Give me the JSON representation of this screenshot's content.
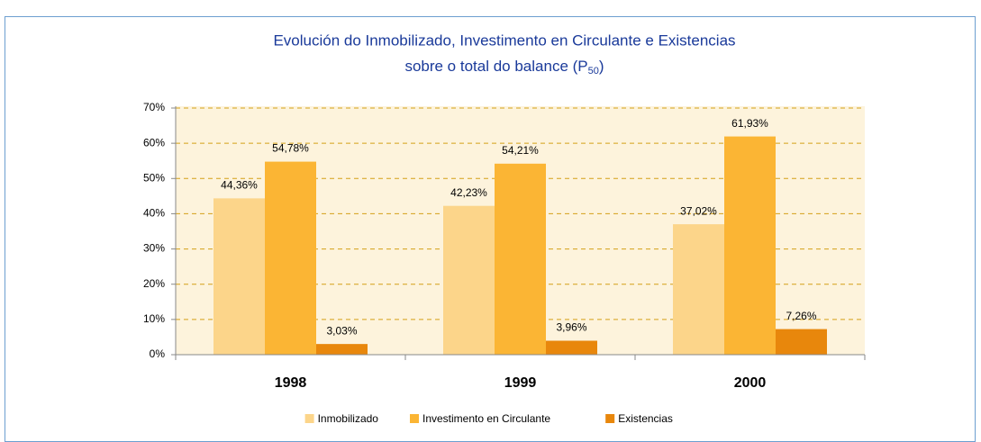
{
  "chart_data": {
    "type": "bar",
    "title": "Evolución do Inmobilizado, Investimento en Circulante e Existencias",
    "subtitle": "sobre o total do balance (P",
    "subtitle_subscript": "50",
    "subtitle_end": ")",
    "categories": [
      "1998",
      "1999",
      "2000"
    ],
    "series": [
      {
        "name": "Inmobilizado",
        "color": "#fcd58a",
        "values": [
          44.36,
          42.23,
          37.02
        ],
        "value_labels": [
          "44,36%",
          "42,23%",
          "37,02%"
        ]
      },
      {
        "name": "Investimento en Circulante",
        "color": "#fbb534",
        "values": [
          54.78,
          54.21,
          61.93
        ],
        "value_labels": [
          "54,78%",
          "54,21%",
          "61,93%"
        ]
      },
      {
        "name": "Existencias",
        "color": "#e8870c",
        "values": [
          3.03,
          3.96,
          7.26
        ],
        "value_labels": [
          "3,03%",
          "3,96%",
          "7,26%"
        ]
      }
    ],
    "ylim": [
      0,
      70
    ],
    "yticks": [
      {
        "value": 0,
        "label": "0%"
      },
      {
        "value": 10,
        "label": "10%"
      },
      {
        "value": 20,
        "label": "20%"
      },
      {
        "value": 30,
        "label": "30%"
      },
      {
        "value": 40,
        "label": "40%"
      },
      {
        "value": 50,
        "label": "50%"
      },
      {
        "value": 60,
        "label": "60%"
      },
      {
        "value": 70,
        "label": "70%"
      }
    ],
    "grid": true,
    "legend": "bottom"
  }
}
